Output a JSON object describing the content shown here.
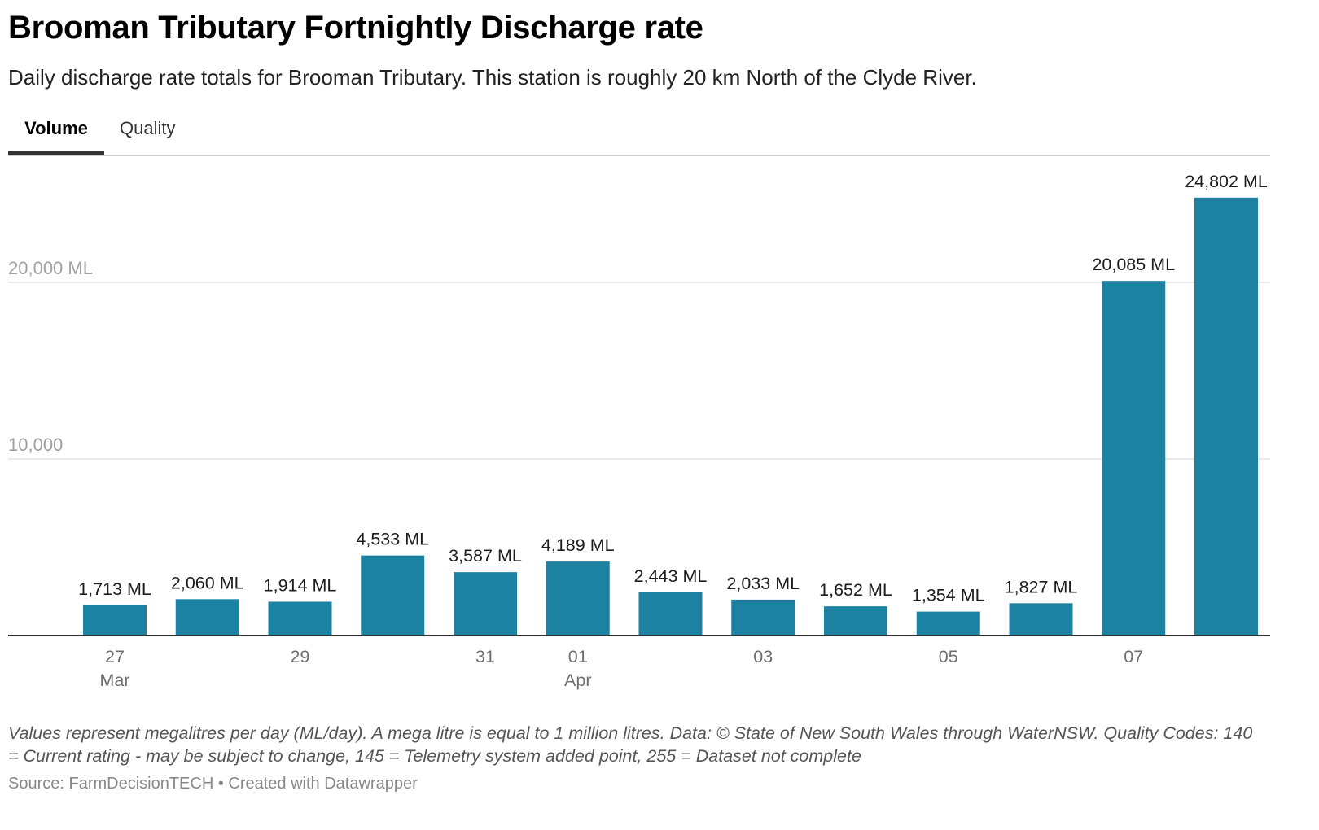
{
  "header": {
    "title": "Brooman Tributary Fortnightly Discharge rate",
    "subtitle": "Daily discharge rate totals for Brooman Tributary. This station is roughly 20 km North of the Clyde River."
  },
  "tabs": [
    {
      "label": "Volume",
      "active": true
    },
    {
      "label": "Quality",
      "active": false
    }
  ],
  "chart_data": {
    "type": "bar",
    "categories": [
      "2021-03-27",
      "2021-03-28",
      "2021-03-29",
      "2021-03-30",
      "2021-03-31",
      "2021-04-01",
      "2021-04-02",
      "2021-04-03",
      "2021-04-04",
      "2021-04-05",
      "2021-04-06",
      "2021-04-07",
      "2021-04-08"
    ],
    "values": [
      1713,
      2060,
      1914,
      4533,
      3587,
      4189,
      2443,
      2033,
      1652,
      1354,
      1827,
      20085,
      24802
    ],
    "value_labels": [
      "1,713 ML",
      "2,060 ML",
      "1,914 ML",
      "4,533 ML",
      "3,587 ML",
      "4,189 ML",
      "2,443 ML",
      "2,033 ML",
      "1,652 ML",
      "1,354 ML",
      "1,827 ML",
      "20,085 ML",
      "24,802 ML"
    ],
    "x_ticks": [
      {
        "index": 0,
        "label": "27",
        "sublabel": "Mar"
      },
      {
        "index": 2,
        "label": "29",
        "sublabel": ""
      },
      {
        "index": 4,
        "label": "31",
        "sublabel": ""
      },
      {
        "index": 5,
        "label": "01",
        "sublabel": "Apr"
      },
      {
        "index": 7,
        "label": "03",
        "sublabel": ""
      },
      {
        "index": 9,
        "label": "05",
        "sublabel": ""
      },
      {
        "index": 11,
        "label": "07",
        "sublabel": ""
      }
    ],
    "y_ticks": [
      {
        "value": 10000,
        "label": "10,000"
      },
      {
        "value": 20000,
        "label": "20,000 ML"
      }
    ],
    "ylim": [
      0,
      26000
    ],
    "grid": true,
    "bar_color": "#1d81a2",
    "gridline_color": "#e3e3e3",
    "axis_label_color": "#a0a0a0",
    "tick_label_color": "#6e6e6e"
  },
  "footer": {
    "notes": "Values represent megalitres per day (ML/day). A mega litre is equal to 1 million litres. Data: © State of New South Wales through WaterNSW. Quality Codes: 140 = Current rating - may be subject to change, 145 = Telemetry system added point, 255 = Dataset not complete",
    "source": "Source: FarmDecisionTECH • Created with Datawrapper"
  }
}
